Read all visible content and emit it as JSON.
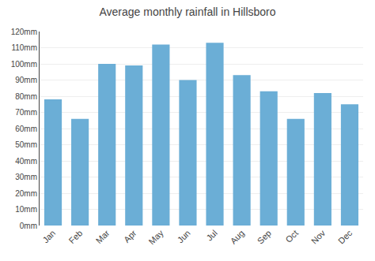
{
  "chart_data": {
    "type": "bar",
    "title": "Average monthly rainfall in Hillsboro",
    "categories": [
      "Jan",
      "Feb",
      "Mar",
      "Apr",
      "May",
      "Jun",
      "Jul",
      "Aug",
      "Sep",
      "Oct",
      "Nov",
      "Dec"
    ],
    "values": [
      78,
      66,
      100,
      99,
      112,
      90,
      113,
      93,
      83,
      66,
      82,
      75
    ],
    "color": "#6baed6",
    "ylim": [
      0,
      120
    ],
    "yticks": [
      {
        "value": 0,
        "label": "0mm"
      },
      {
        "value": 10,
        "label": "10mm"
      },
      {
        "value": 20,
        "label": "20mm"
      },
      {
        "value": 30,
        "label": "30mm"
      },
      {
        "value": 40,
        "label": "40mm"
      },
      {
        "value": 50,
        "label": "50mm"
      },
      {
        "value": 60,
        "label": "60mm"
      },
      {
        "value": 70,
        "label": "70mm"
      },
      {
        "value": 80,
        "label": "80mm"
      },
      {
        "value": 90,
        "label": "90mm"
      },
      {
        "value": 100,
        "label": "100mm"
      },
      {
        "value": 110,
        "label": "110mm"
      },
      {
        "value": 120,
        "label": "120mm"
      }
    ],
    "grid": true
  }
}
